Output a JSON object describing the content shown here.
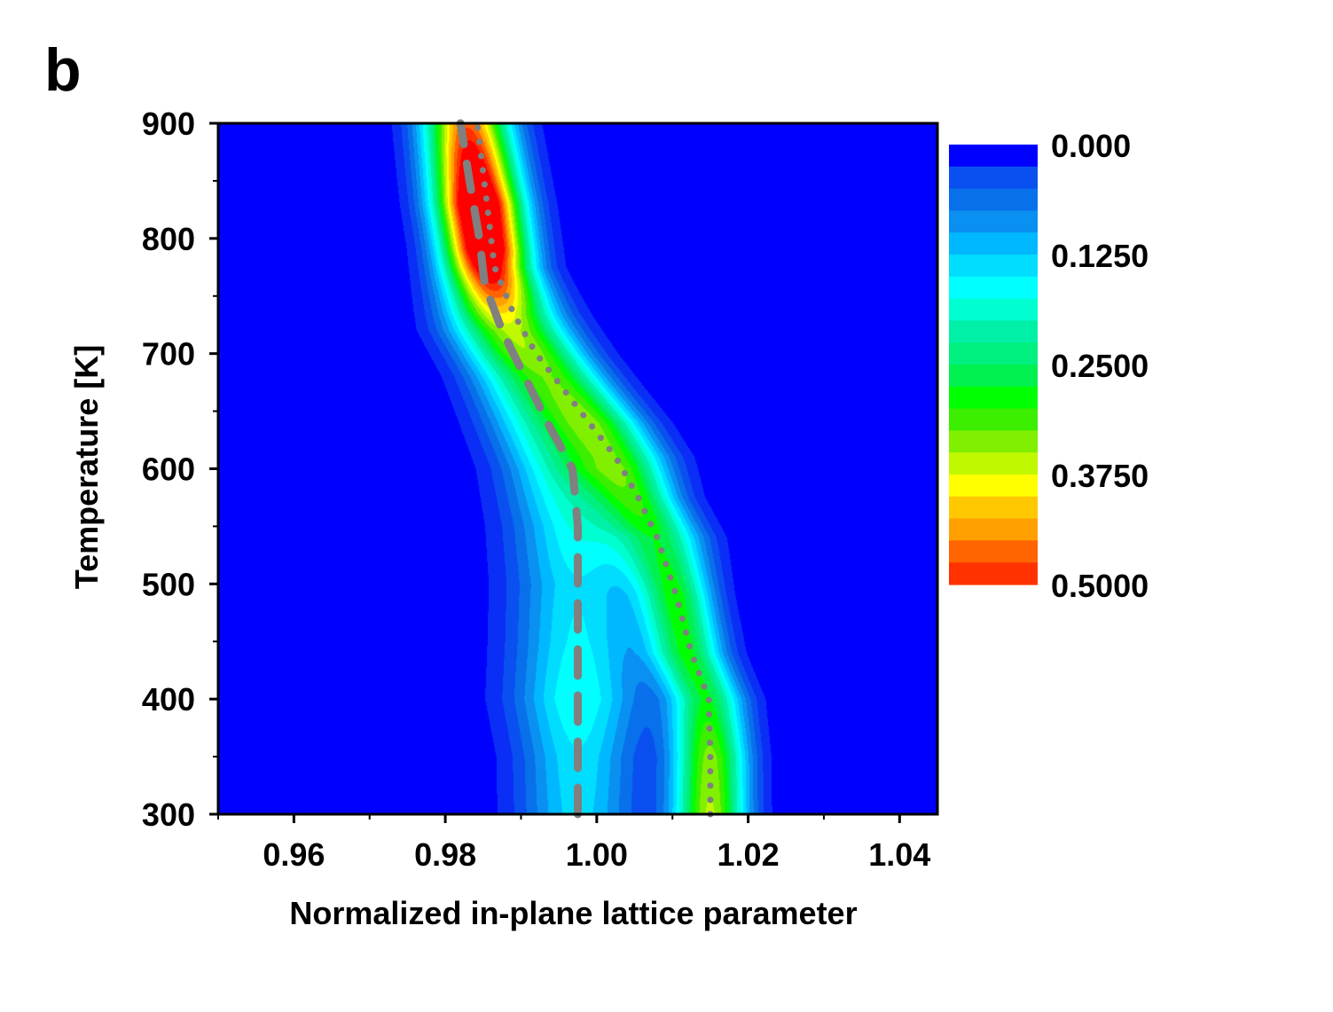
{
  "panel_label": "b",
  "chart_data": {
    "type": "heatmap",
    "title": "",
    "xlabel": "Normalized in-plane lattice parameter",
    "ylabel": "Temperature [K]",
    "xlim": [
      0.95,
      1.045
    ],
    "ylim": [
      300,
      900
    ],
    "x_ticks": [
      "0.96",
      "0.98",
      "1.00",
      "1.02",
      "1.04"
    ],
    "x_tick_values": [
      0.96,
      0.98,
      1.0,
      1.02,
      1.04
    ],
    "y_ticks": [
      "300",
      "400",
      "500",
      "600",
      "700",
      "800",
      "900"
    ],
    "y_tick_values": [
      300,
      400,
      500,
      600,
      700,
      800,
      900
    ],
    "colorbar": {
      "range": [
        0.0,
        0.5
      ],
      "labels": [
        "0.000",
        "0.1250",
        "0.2500",
        "0.3750",
        "0.5000"
      ],
      "label_values": [
        0.0,
        0.125,
        0.25,
        0.375,
        0.5
      ],
      "levels": 20,
      "colors": [
        "#0000FF",
        "#0A2EF5",
        "#0A50F0",
        "#0870EB",
        "#0A90F0",
        "#00B8FF",
        "#00DDFF",
        "#00FFFF",
        "#00FFD0",
        "#00F0A8",
        "#00F080",
        "#00F050",
        "#00FF00",
        "#3CEE00",
        "#80F000",
        "#C0F800",
        "#FFFF00",
        "#FFC800",
        "#FFA000",
        "#FF6400",
        "#FF3200",
        "#FF0000"
      ],
      "background": "#0000FF"
    },
    "ridges": [
      {
        "x": [
          1.015,
          1.015,
          1.0145,
          1.012,
          1.0105,
          1.0085,
          1.0055,
          1.003,
          1.0,
          0.9965,
          0.993,
          0.9895,
          0.9865,
          0.985,
          0.9835
        ],
        "y": [
          300,
          350,
          400,
          440,
          490,
          540,
          575,
          610,
          640,
          670,
          700,
          735,
          775,
          830,
          900
        ],
        "widths": [
          0.0035,
          0.0035,
          0.0035,
          0.0035,
          0.0035,
          0.004,
          0.004,
          0.0045,
          0.0045,
          0.0045,
          0.0045,
          0.0045,
          0.004,
          0.004,
          0.004
        ],
        "peaks": [
          0.38,
          0.36,
          0.3,
          0.3,
          0.3,
          0.26,
          0.27,
          0.28,
          0.3,
          0.28,
          0.27,
          0.25,
          0.3,
          0.4,
          0.28
        ]
      },
      {
        "x": [
          0.9975,
          0.9975,
          0.9975,
          0.9975,
          0.9975,
          0.9975,
          0.9955,
          0.992,
          0.9885,
          0.9855,
          0.9845,
          0.983,
          0.982
        ],
        "y": [
          300,
          350,
          400,
          450,
          500,
          550,
          600,
          640,
          680,
          720,
          790,
          850,
          900
        ],
        "widths": [
          0.0055,
          0.0055,
          0.006,
          0.006,
          0.006,
          0.006,
          0.0055,
          0.005,
          0.0045,
          0.0045,
          0.004,
          0.004,
          0.004
        ],
        "peaks": [
          0.16,
          0.17,
          0.2,
          0.18,
          0.17,
          0.2,
          0.22,
          0.2,
          0.18,
          0.2,
          0.32,
          0.25,
          0.22
        ]
      }
    ],
    "lines": [
      {
        "style": "dashed",
        "color": "#808080",
        "x": [
          0.9975,
          0.9975,
          0.9975,
          0.9975,
          0.9975,
          0.9975,
          0.9968,
          0.9935,
          0.9905,
          0.9875,
          0.9852,
          0.9845,
          0.9832,
          0.982
        ],
        "y": [
          300,
          350,
          400,
          450,
          500,
          550,
          600,
          640,
          680,
          720,
          760,
          800,
          850,
          900
        ]
      },
      {
        "style": "dotted",
        "color": "#808080",
        "x": [
          1.015,
          1.015,
          1.0148,
          1.0125,
          1.0105,
          1.008,
          1.0055,
          1.0025,
          0.999,
          0.9955,
          0.992,
          0.989,
          0.9865,
          0.9855,
          0.9842
        ],
        "y": [
          300,
          350,
          400,
          440,
          490,
          540,
          575,
          610,
          640,
          670,
          700,
          735,
          775,
          830,
          900
        ]
      }
    ]
  }
}
